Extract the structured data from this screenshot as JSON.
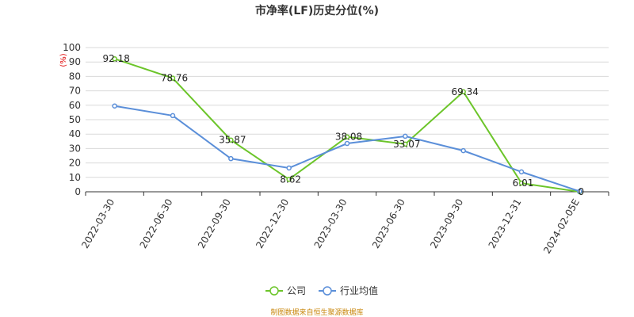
{
  "chart_data": {
    "type": "line",
    "title": "市净率(LF)历史分位(%)",
    "unit_label": "(%)",
    "categories": [
      "2022-03-30",
      "2022-06-30",
      "2022-09-30",
      "2022-12-30",
      "2023-03-30",
      "2023-06-30",
      "2023-09-30",
      "2023-12-31",
      "2024-02-05E"
    ],
    "ylim": [
      0,
      100
    ],
    "yticks": [
      0,
      10,
      20,
      30,
      40,
      50,
      60,
      70,
      80,
      90,
      100
    ],
    "grid": true,
    "legend_position": "bottom-center",
    "series": [
      {
        "name": "公司",
        "color": "#6cc52a",
        "values": [
          92.18,
          78.76,
          35.87,
          8.62,
          38.08,
          33.07,
          69.34,
          6.01,
          0
        ],
        "labels": [
          "92.18",
          "78.76",
          "35.87",
          "8.62",
          "38.08",
          "33.07",
          "69.34",
          "6.01",
          "0"
        ]
      },
      {
        "name": "行业均值",
        "color": "#5b8fd9",
        "values": [
          59.5,
          52.8,
          23.0,
          16.5,
          33.5,
          38.5,
          28.5,
          13.8,
          0.3
        ]
      }
    ],
    "source": "制图数据来自恒生聚源数据库"
  }
}
